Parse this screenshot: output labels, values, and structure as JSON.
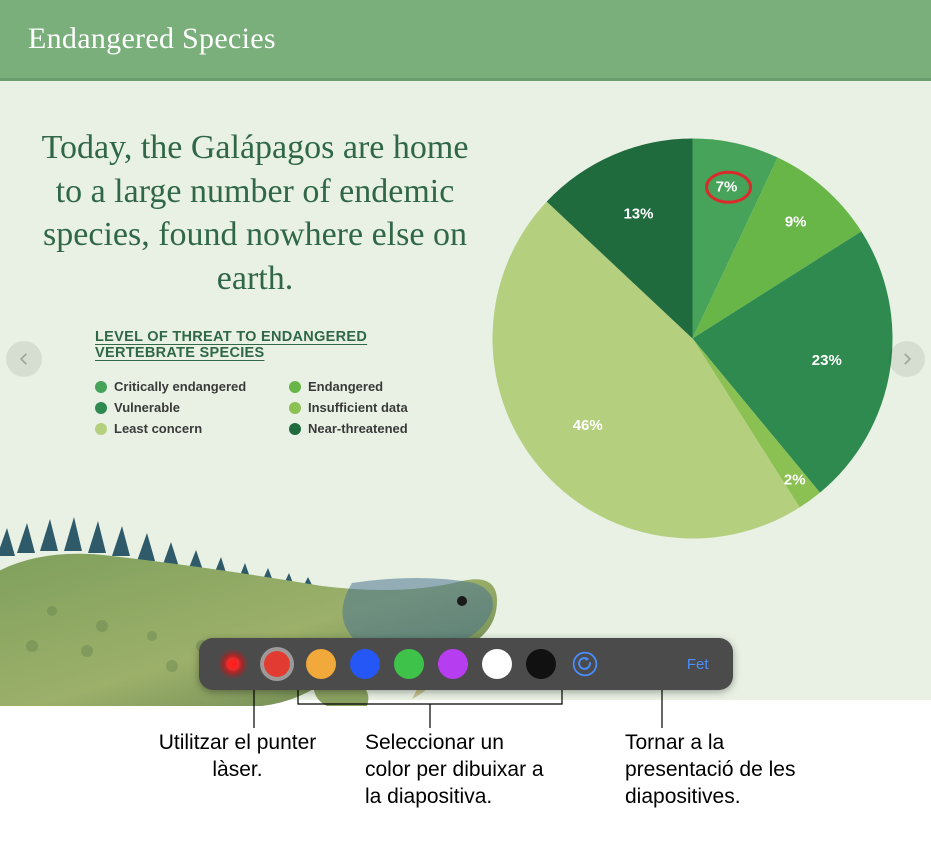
{
  "slide": {
    "title": "Endangered Species",
    "body_text": "Today, the Galápagos are home to a large number of endemic species, found nowhere else on earth.",
    "title_bar_color": "#7aaf7c",
    "body_background": "#e9f1e4",
    "body_text_color": "#2f6748",
    "legend": {
      "title": "LEVEL OF THREAT TO ENDANGERED VERTEBRATE SPECIES",
      "items": [
        {
          "label": "Critically endangered",
          "color": "#47a35a"
        },
        {
          "label": "Endangered",
          "color": "#68b648"
        },
        {
          "label": "Vulnerable",
          "color": "#2f8a4f"
        },
        {
          "label": "Insufficient data",
          "color": "#8bc053"
        },
        {
          "label": "Least concern",
          "color": "#b4cf7e"
        },
        {
          "label": "Near-threatened",
          "color": "#206b3e"
        }
      ]
    },
    "pie": {
      "type": "pie",
      "background": "#e9f1e4",
      "label_color": "#ffffff",
      "label_fontsize": 15,
      "start_angle_deg": -90,
      "slices": [
        {
          "label": "7%",
          "value": 7,
          "color": "#47a35a"
        },
        {
          "label": "9%",
          "value": 9,
          "color": "#68b648"
        },
        {
          "label": "23%",
          "value": 23,
          "color": "#2f8a4f"
        },
        {
          "label": "2%",
          "value": 2,
          "color": "#8bc053"
        },
        {
          "label": "46%",
          "value": 46,
          "color": "#b4cf7e"
        },
        {
          "label": "13%",
          "value": 13,
          "color": "#206b3e"
        }
      ],
      "annotation_circle": {
        "slice_index": 0,
        "stroke": "#d92b2b",
        "stroke_width": 3
      }
    }
  },
  "toolbar": {
    "laser_tooltip": "Punter làser",
    "colors": [
      {
        "name": "red",
        "hex": "#e23b32",
        "selected": true
      },
      {
        "name": "orange",
        "hex": "#f0a93a",
        "selected": false
      },
      {
        "name": "blue",
        "hex": "#2457f5",
        "selected": false
      },
      {
        "name": "green",
        "hex": "#3fc24a",
        "selected": false
      },
      {
        "name": "purple",
        "hex": "#b63df0",
        "selected": false
      },
      {
        "name": "white",
        "hex": "#ffffff",
        "selected": false
      },
      {
        "name": "black",
        "hex": "#111111",
        "selected": false
      }
    ],
    "undo_icon": "undo",
    "done_label": "Fet",
    "accent_color": "#4a8dff",
    "background_color": "#4b4b4b"
  },
  "callouts": {
    "laser": "Utilitzar el punter làser.",
    "colors": "Seleccionar un color per dibuixar a la diapositiva.",
    "done": "Tornar a la presentació de les diapositives."
  }
}
